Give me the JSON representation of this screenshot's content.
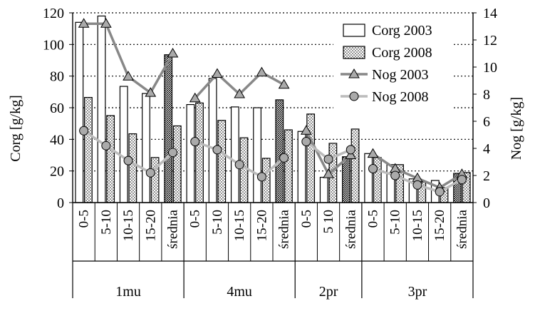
{
  "chart_data": {
    "type": "bar",
    "title": "",
    "ylabel_left": "Corg  [g/kg]",
    "ylabel_right": "Nog  [g/kg]",
    "ylim_left": [
      0,
      120
    ],
    "ylim_right": [
      0,
      14
    ],
    "yticks_left": [
      "0",
      "20",
      "40",
      "60",
      "80",
      "100",
      "120"
    ],
    "yticks_right": [
      "0",
      "2",
      "4",
      "6",
      "8",
      "10",
      "12",
      "14"
    ],
    "grid": "horizontal dotted",
    "legend_position": "top-right",
    "groups": [
      {
        "name": "1mu",
        "categories": [
          "0-5",
          "5-10",
          "10-15",
          "15-20",
          "średnia"
        ]
      },
      {
        "name": "4mu",
        "categories": [
          "0-5",
          "5-10",
          "10-15",
          "15-20",
          "średnia"
        ]
      },
      {
        "name": "2pr",
        "categories": [
          "0-5",
          "5 10",
          "średnia"
        ]
      },
      {
        "name": "3pr",
        "categories": [
          "0-5",
          "5-10",
          "10-15",
          "15-20",
          "średnia"
        ]
      }
    ],
    "series": [
      {
        "name": "Corg 2003",
        "kind": "bar",
        "axis": "left",
        "style": "white",
        "values": [
          [
            114,
            118,
            73.5,
            69,
            93.5
          ],
          [
            62,
            78.5,
            60.5,
            60,
            65
          ],
          [
            45,
            16,
            29
          ],
          [
            31,
            24,
            15,
            14,
            18.5
          ]
        ]
      },
      {
        "name": "Corg 2008",
        "kind": "bar",
        "axis": "left",
        "style": "dotted",
        "values": [
          [
            66.5,
            55,
            43.5,
            28.5,
            48.5
          ],
          [
            63,
            52,
            41,
            28,
            46
          ],
          [
            56,
            37.5,
            46.5
          ],
          [
            28.5,
            24,
            13,
            9.5,
            19
          ]
        ]
      },
      {
        "name": "Nog 2003",
        "kind": "line",
        "axis": "right",
        "marker": "triangle",
        "color": "#888888",
        "values": [
          [
            13.2,
            13.2,
            9.3,
            8.1,
            11
          ],
          [
            7.7,
            9.5,
            8,
            9.6,
            8.7
          ],
          [
            5.3,
            2.1,
            3.5
          ],
          [
            3.6,
            2.5,
            1.8,
            1.1,
            2.1
          ]
        ]
      },
      {
        "name": "Nog 2008",
        "kind": "line",
        "axis": "right",
        "marker": "circle",
        "color": "#bbbbbb",
        "values": [
          [
            5.3,
            4.2,
            3.1,
            2.2,
            3.7
          ],
          [
            4.5,
            3.9,
            2.8,
            1.9,
            3.3
          ],
          [
            4.5,
            3.2,
            3.9
          ],
          [
            2.5,
            2,
            1.3,
            0.8,
            1.7
          ]
        ]
      }
    ]
  }
}
